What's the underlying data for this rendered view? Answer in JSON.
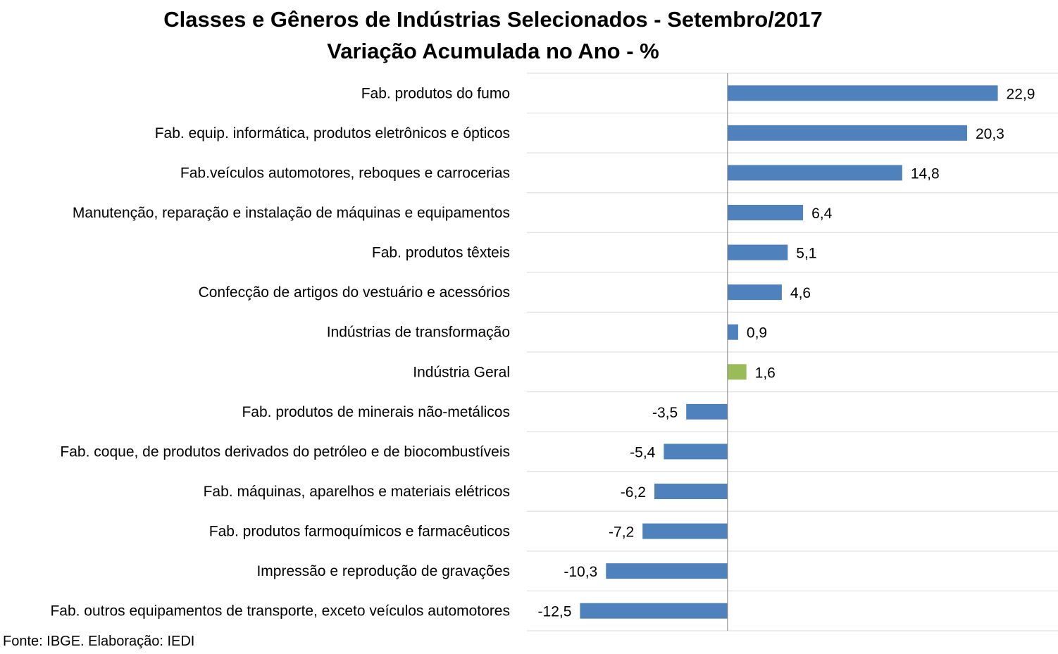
{
  "chart_data": {
    "type": "bar",
    "orientation": "horizontal",
    "title": "Classes e Gêneros de Indústrias Selecionados - Setembro/2017",
    "subtitle": "Variação Acumulada no Ano - %",
    "categories": [
      "Fab. produtos do fumo",
      "Fab. equip. informática, produtos eletrônicos e ópticos",
      "Fab.veículos automotores, reboques e carrocerias",
      "Manutenção, reparação e instalação de máquinas e equipamentos",
      "Fab. produtos têxteis",
      "Confecção de artigos do vestuário e acessórios",
      "Indústrias de transformação",
      "Indústria Geral",
      "Fab. produtos de minerais não-metálicos",
      "Fab. coque, de produtos derivados do petróleo e de biocombustíveis",
      "Fab. máquinas, aparelhos e materiais elétricos",
      "Fab. produtos farmoquímicos e farmacêuticos",
      "Impressão e reprodução de gravações",
      "Fab. outros equipamentos de transporte, exceto veículos automotores"
    ],
    "values": [
      22.9,
      20.3,
      14.8,
      6.4,
      5.1,
      4.6,
      0.9,
      1.6,
      -3.5,
      -5.4,
      -6.2,
      -7.2,
      -10.3,
      -12.5
    ],
    "value_labels": [
      "22,9",
      "20,3",
      "14,8",
      "6,4",
      "5,1",
      "4,6",
      "0,9",
      "1,6",
      "-3,5",
      "-5,4",
      "-6,2",
      "-7,2",
      "-10,3",
      "-12,5"
    ],
    "bar_colors": [
      "#4f81bd",
      "#4f81bd",
      "#4f81bd",
      "#4f81bd",
      "#4f81bd",
      "#4f81bd",
      "#4f81bd",
      "#9bbb59",
      "#4f81bd",
      "#4f81bd",
      "#4f81bd",
      "#4f81bd",
      "#4f81bd",
      "#4f81bd"
    ],
    "xlim": [
      -17,
      28
    ],
    "grid": "horizontal separators",
    "legend": "none"
  },
  "colors": {
    "primary_bar": "#4f81bd",
    "highlight_bar": "#9bbb59",
    "gridline": "#d9d9d9",
    "axis": "#808080"
  },
  "source": "Fonte: IBGE. Elaboração: IEDI"
}
